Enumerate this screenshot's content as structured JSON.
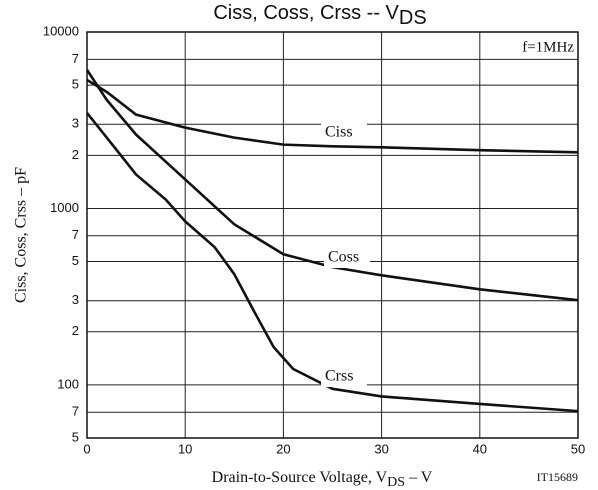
{
  "chart_data": {
    "type": "line",
    "title": [
      "Ciss, Coss, Crss -- V",
      "DS"
    ],
    "x_label": [
      "Drain-to-Source Voltage, V",
      "DS",
      "  –  V"
    ],
    "y_label": "Ciss, Coss, Crss – pF",
    "annotation": "f=1MHz",
    "figure_id": "IT15689",
    "log_y": true,
    "grid": true,
    "xlim": [
      0,
      50
    ],
    "xticks": [
      0,
      10,
      20,
      30,
      40,
      50
    ],
    "ylim": [
      50,
      10000
    ],
    "yticks": [
      10000,
      {
        "value": 7000,
        "label": "7"
      },
      {
        "value": 5000,
        "label": "5"
      },
      {
        "value": 3000,
        "label": "3"
      },
      {
        "value": 2000,
        "label": "2"
      },
      1000,
      {
        "value": 700,
        "label": "7"
      },
      {
        "value": 500,
        "label": "5"
      },
      {
        "value": 300,
        "label": "3"
      },
      {
        "value": 200,
        "label": "2"
      },
      100,
      {
        "value": 70,
        "label": "7"
      },
      {
        "value": 50,
        "label": "5"
      }
    ],
    "series": [
      {
        "name": "Ciss",
        "color": "#111111",
        "x": [
          0,
          2,
          5,
          10,
          15,
          20,
          25,
          30,
          40,
          50
        ],
        "values": [
          5350,
          4580,
          3400,
          2870,
          2520,
          2300,
          2250,
          2220,
          2140,
          2080
        ]
      },
      {
        "name": "Coss",
        "color": "#111111",
        "x": [
          0,
          2,
          5,
          10,
          15,
          20,
          25,
          30,
          40,
          50
        ],
        "values": [
          6100,
          4130,
          2620,
          1460,
          813,
          550,
          465,
          418,
          348,
          302
        ]
      },
      {
        "name": "Crss",
        "color": "#111111",
        "x": [
          0,
          3,
          5,
          8,
          10,
          13,
          15,
          17,
          19,
          21,
          25,
          30,
          40,
          50
        ],
        "values": [
          3480,
          2150,
          1556,
          1125,
          845,
          603,
          424,
          262,
          164,
          123,
          95,
          86,
          78,
          71
        ]
      }
    ]
  }
}
